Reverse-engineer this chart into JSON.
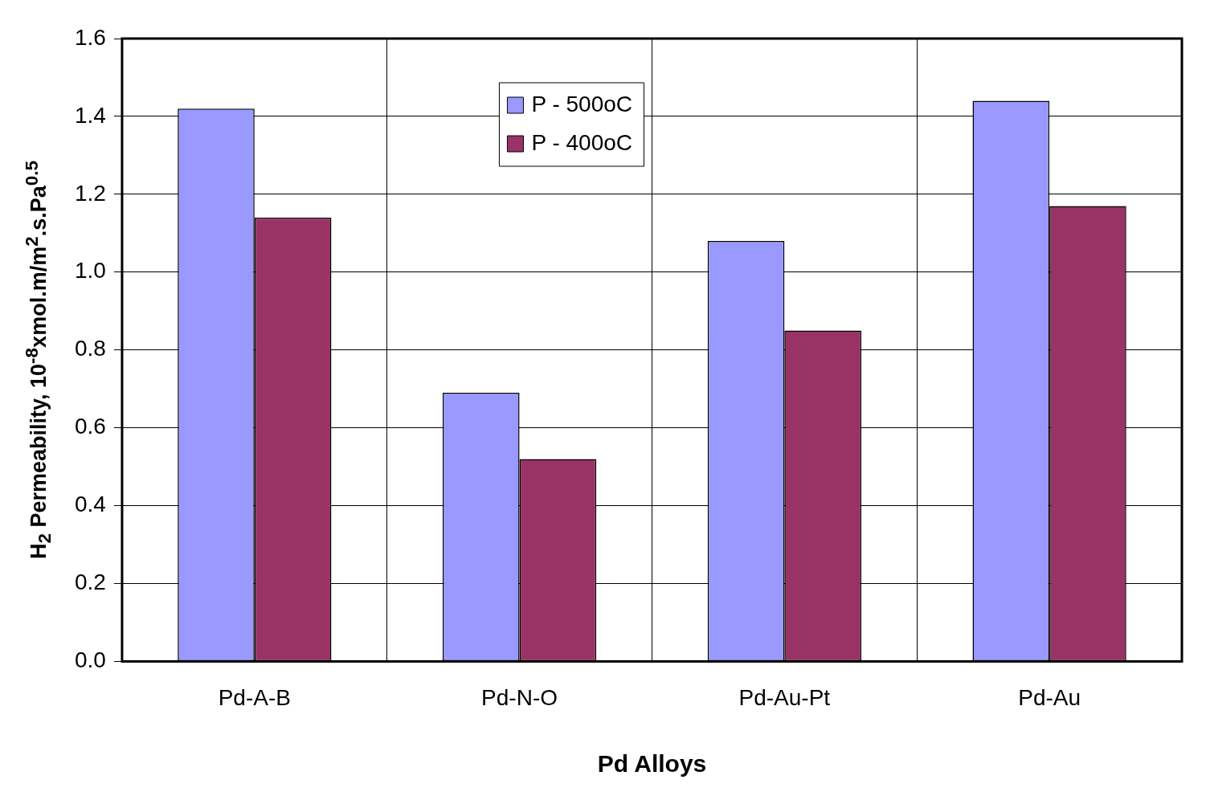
{
  "chart_data": {
    "type": "bar",
    "xlabel": "Pd Alloys",
    "ylabel": "H$_{2}$ Permeability, 10$^{-8}$xmol.m/m$^{2}$.s.Pa$^{0.5}$",
    "categories": [
      "Pd-A-B",
      "Pd-N-O",
      "Pd-Au-Pt",
      "Pd-Au"
    ],
    "series": [
      {
        "name": "P - 500oC",
        "color": "#9999ff",
        "values": [
          1.42,
          0.69,
          1.08,
          1.44
        ]
      },
      {
        "name": "P - 400oC",
        "color": "#993366",
        "values": [
          1.14,
          0.52,
          0.85,
          1.17
        ]
      }
    ],
    "ylim": [
      0,
      1.6
    ],
    "yticks": [
      {
        "value": 0,
        "label": "0.0"
      },
      0.2,
      0.4,
      0.6,
      0.8,
      {
        "value": 1,
        "label": "1.0"
      },
      1.2,
      1.4,
      1.6
    ],
    "grid": true,
    "legend": "top"
  }
}
